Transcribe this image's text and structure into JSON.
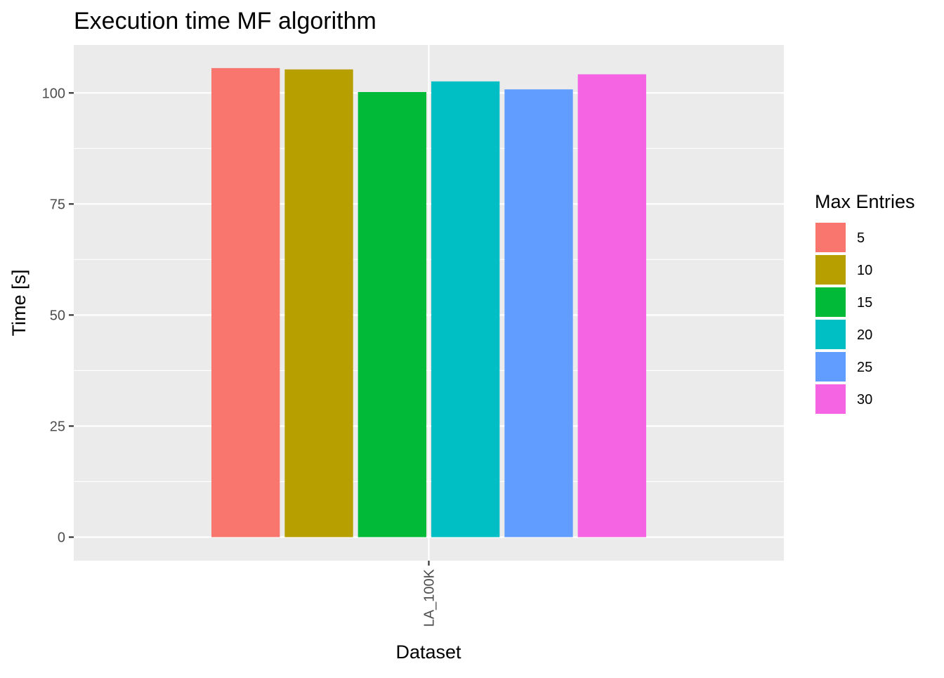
{
  "chart_data": {
    "type": "bar",
    "title": "Execution time MF algorithm",
    "xlabel": "Dataset",
    "ylabel": "Time [s]",
    "categories": [
      "LA_100K"
    ],
    "ylim": [
      -5.3,
      110.8
    ],
    "yticks": [
      0,
      25,
      50,
      75,
      100
    ],
    "grid": true,
    "legend": {
      "title": "Max Entries",
      "position": "right"
    },
    "series": [
      {
        "name": "5",
        "color": "#F8766D",
        "values": [
          105.6
        ]
      },
      {
        "name": "10",
        "color": "#B79F00",
        "values": [
          105.3
        ]
      },
      {
        "name": "15",
        "color": "#00BA38",
        "values": [
          100.2
        ]
      },
      {
        "name": "20",
        "color": "#00BFC4",
        "values": [
          102.6
        ]
      },
      {
        "name": "25",
        "color": "#619CFF",
        "values": [
          100.8
        ]
      },
      {
        "name": "30",
        "color": "#F564E3",
        "values": [
          104.2
        ]
      }
    ],
    "panel_background": "#EBEBEB",
    "grid_color": "#FFFFFF"
  }
}
